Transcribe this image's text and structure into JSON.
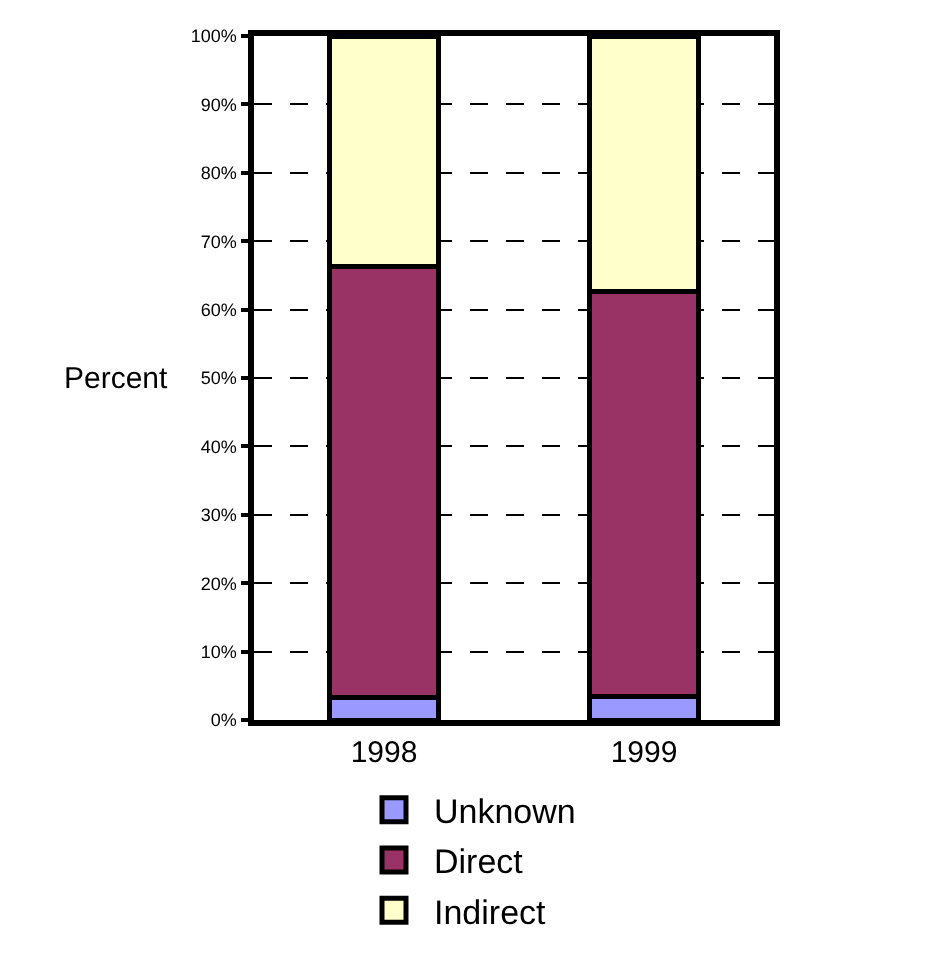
{
  "chart_data": {
    "type": "bar",
    "stacked": true,
    "ylabel": "Percent",
    "categories": [
      "1998",
      "1999"
    ],
    "series": [
      {
        "name": "Unknown",
        "color": "#9999ff",
        "values": [
          3.3,
          3.4
        ]
      },
      {
        "name": "Direct",
        "color": "#993366",
        "values": [
          63,
          59.2
        ]
      },
      {
        "name": "Indirect",
        "color": "#ffffcc",
        "values": [
          33.7,
          37.4
        ]
      }
    ],
    "ylim": [
      0,
      100
    ],
    "yticks": [
      {
        "value": 0,
        "label": "0%"
      },
      {
        "value": 10,
        "label": "10%"
      },
      {
        "value": 20,
        "label": "20%"
      },
      {
        "value": 30,
        "label": "30%"
      },
      {
        "value": 40,
        "label": "40%"
      },
      {
        "value": 50,
        "label": "50%"
      },
      {
        "value": 60,
        "label": "60%"
      },
      {
        "value": 70,
        "label": "70%"
      },
      {
        "value": 80,
        "label": "80%"
      },
      {
        "value": 90,
        "label": "90%"
      },
      {
        "value": 100,
        "label": "100%"
      }
    ],
    "grid": "y",
    "legend": "bottom"
  }
}
